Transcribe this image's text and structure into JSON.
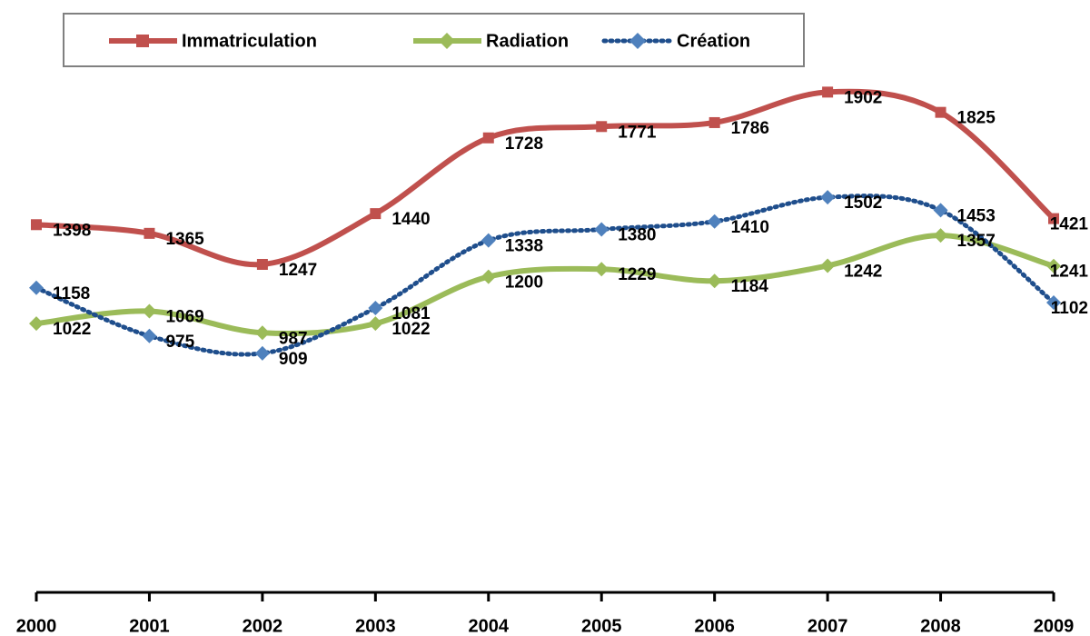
{
  "chart_data": {
    "type": "line",
    "categories": [
      "2000",
      "2001",
      "2002",
      "2003",
      "2004",
      "2005",
      "2006",
      "2007",
      "2008",
      "2009"
    ],
    "series": [
      {
        "name": "Immatriculation",
        "color": "#c0504d",
        "marker": "square",
        "values": [
          1398,
          1365,
          1247,
          1440,
          1728,
          1771,
          1786,
          1902,
          1825,
          1421
        ]
      },
      {
        "name": "Radiation",
        "color": "#9bbb59",
        "marker": "diamond",
        "values": [
          1022,
          1069,
          987,
          1022,
          1200,
          1229,
          1184,
          1242,
          1357,
          1241
        ]
      },
      {
        "name": "Création",
        "color": "#1f4e8c",
        "marker": "circle",
        "dash": "dotted",
        "values": [
          1158,
          975,
          909,
          1081,
          1338,
          1380,
          1410,
          1502,
          1453,
          1102
        ]
      }
    ],
    "ylim": [
      0,
      2000
    ],
    "legend": "top"
  }
}
